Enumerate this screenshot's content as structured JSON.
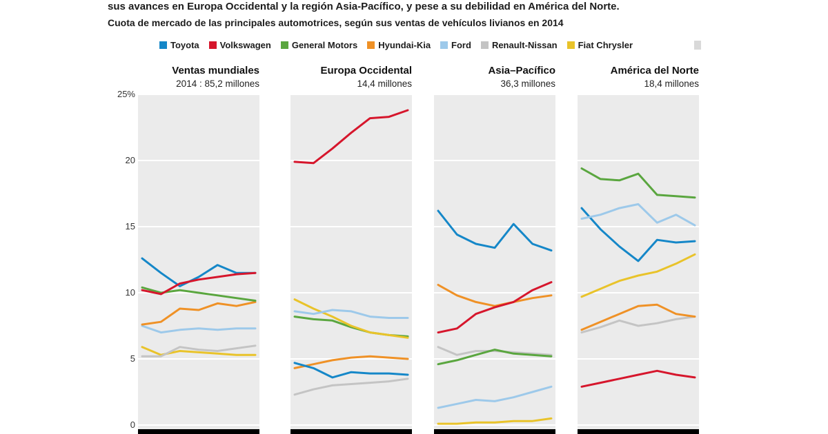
{
  "header": {
    "line1": "sus avances en Europa Occidental y la región Asia-Pacífico, y pese a su debilidad en América del Norte.",
    "line2": "Cuota de mercado de las principales automotrices, según sus ventas de vehículos livianos en 2014"
  },
  "legend": {
    "items": [
      "Toyota",
      "Volkswagen",
      "General Motors",
      "Hyundai-Kia",
      "Ford",
      "Renault-Nissan",
      "Fiat Chrysler"
    ]
  },
  "y_axis": {
    "ticks": [
      "25%",
      "20",
      "15",
      "10",
      "5",
      "0"
    ],
    "values": [
      25,
      20,
      15,
      10,
      5,
      0
    ]
  },
  "chart_data": {
    "type": "line",
    "x_points": 7,
    "ylim": [
      0,
      25
    ],
    "grid": true,
    "legend_position": "top",
    "panel_bg": "#ebebeb",
    "gridline_color": "#ffffff",
    "series_colors": {
      "Toyota": "#1587c8",
      "Volkswagen": "#d6162c",
      "General Motors": "#5aa63f",
      "Hyundai-Kia": "#ef9126",
      "Ford": "#9dc9ea",
      "Renault-Nissan": "#c4c4c4",
      "Fiat Chrysler": "#e9c32a"
    },
    "panels": [
      {
        "title": "Ventas mundiales",
        "subtitle": "2014 : 85,2 millones",
        "series": [
          {
            "name": "Ford",
            "values": [
              7.5,
              7.0,
              7.2,
              7.3,
              7.2,
              7.3,
              7.3
            ]
          },
          {
            "name": "Fiat Chrysler",
            "values": [
              5.9,
              5.3,
              5.6,
              5.5,
              5.4,
              5.3,
              5.3
            ]
          },
          {
            "name": "Renault-Nissan",
            "values": [
              5.2,
              5.2,
              5.9,
              5.7,
              5.6,
              5.8,
              6.0
            ]
          },
          {
            "name": "Hyundai-Kia",
            "values": [
              7.6,
              7.8,
              8.8,
              8.7,
              9.2,
              9.0,
              9.3
            ]
          },
          {
            "name": "General Motors",
            "values": [
              10.4,
              10.0,
              10.2,
              10.0,
              9.8,
              9.6,
              9.4
            ]
          },
          {
            "name": "Toyota",
            "values": [
              12.6,
              11.5,
              10.5,
              11.2,
              12.1,
              11.5,
              11.5
            ]
          },
          {
            "name": "Volkswagen",
            "values": [
              10.2,
              9.9,
              10.7,
              11.0,
              11.2,
              11.4,
              11.5
            ]
          }
        ]
      },
      {
        "title": "Europa Occidental",
        "subtitle": "14,4 millones",
        "series": [
          {
            "name": "Renault-Nissan",
            "values": [
              2.3,
              2.7,
              3.0,
              3.1,
              3.2,
              3.3,
              3.5
            ]
          },
          {
            "name": "Hyundai-Kia",
            "values": [
              4.3,
              4.6,
              4.9,
              5.1,
              5.2,
              5.1,
              5.0
            ]
          },
          {
            "name": "Toyota",
            "values": [
              4.7,
              4.3,
              3.6,
              4.0,
              3.9,
              3.9,
              3.8
            ]
          },
          {
            "name": "General Motors",
            "values": [
              8.2,
              8.0,
              7.9,
              7.4,
              7.0,
              6.8,
              6.7
            ]
          },
          {
            "name": "Fiat Chrysler",
            "values": [
              9.5,
              8.8,
              8.2,
              7.5,
              7.0,
              6.8,
              6.6
            ]
          },
          {
            "name": "Ford",
            "values": [
              8.6,
              8.4,
              8.7,
              8.6,
              8.2,
              8.1,
              8.1
            ]
          },
          {
            "name": "Volkswagen",
            "values": [
              19.9,
              19.8,
              20.9,
              22.1,
              23.2,
              23.3,
              23.8
            ]
          }
        ]
      },
      {
        "title": "Asia–Pacífico",
        "subtitle": "36,3 millones",
        "series": [
          {
            "name": "Fiat Chrysler",
            "values": [
              0.1,
              0.1,
              0.2,
              0.2,
              0.3,
              0.3,
              0.5
            ]
          },
          {
            "name": "Ford",
            "values": [
              1.3,
              1.6,
              1.9,
              1.8,
              2.1,
              2.5,
              2.9
            ]
          },
          {
            "name": "Renault-Nissan",
            "values": [
              5.9,
              5.3,
              5.6,
              5.6,
              5.5,
              5.4,
              5.3
            ]
          },
          {
            "name": "General Motors",
            "values": [
              4.6,
              4.9,
              5.3,
              5.7,
              5.4,
              5.3,
              5.2
            ]
          },
          {
            "name": "Hyundai-Kia",
            "values": [
              10.6,
              9.8,
              9.3,
              9.0,
              9.3,
              9.6,
              9.8
            ]
          },
          {
            "name": "Volkswagen",
            "values": [
              7.0,
              7.3,
              8.4,
              8.9,
              9.3,
              10.2,
              10.8
            ]
          },
          {
            "name": "Toyota",
            "values": [
              16.2,
              14.4,
              13.7,
              13.4,
              15.2,
              13.7,
              13.2
            ]
          }
        ]
      },
      {
        "title": "América del Norte",
        "subtitle": "18,4 millones",
        "series": [
          {
            "name": "Volkswagen",
            "values": [
              2.9,
              3.2,
              3.5,
              3.8,
              4.1,
              3.8,
              3.6
            ]
          },
          {
            "name": "Renault-Nissan",
            "values": [
              7.0,
              7.4,
              7.9,
              7.5,
              7.7,
              8.0,
              8.2
            ]
          },
          {
            "name": "Hyundai-Kia",
            "values": [
              7.2,
              7.8,
              8.4,
              9.0,
              9.1,
              8.4,
              8.2
            ]
          },
          {
            "name": "Fiat Chrysler",
            "values": [
              9.7,
              10.3,
              10.9,
              11.3,
              11.6,
              12.2,
              12.9
            ]
          },
          {
            "name": "Toyota",
            "values": [
              16.4,
              14.8,
              13.5,
              12.4,
              14.0,
              13.8,
              13.9
            ]
          },
          {
            "name": "Ford",
            "values": [
              15.6,
              15.9,
              16.4,
              16.7,
              15.3,
              15.9,
              15.1
            ]
          },
          {
            "name": "General Motors",
            "values": [
              19.4,
              18.6,
              18.5,
              19.0,
              17.4,
              17.3,
              17.2
            ]
          }
        ]
      }
    ]
  }
}
